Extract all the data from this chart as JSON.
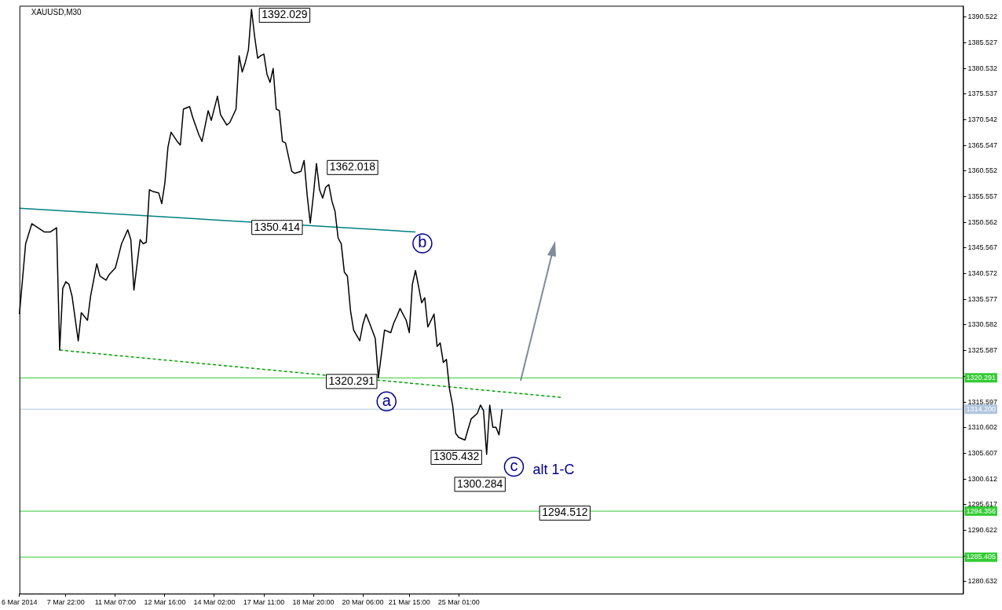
{
  "chart_data": {
    "type": "line",
    "title": "XAUUSD,M30",
    "legend": false,
    "grid": false,
    "marker": "none",
    "categories": [
      "6 Mar 2014",
      null,
      null,
      null,
      null,
      null,
      null,
      null,
      null,
      null,
      null,
      null,
      null,
      null,
      null,
      "7 Mar 22:00",
      null,
      null,
      null,
      null,
      null,
      null,
      null,
      null,
      null,
      null,
      null,
      null,
      null,
      null,
      null,
      "11 Mar 07:00",
      null,
      null,
      null,
      null,
      null,
      null,
      null,
      null,
      null,
      null,
      null,
      null,
      null,
      null,
      null,
      "12 Mar 16:00",
      null,
      null,
      null,
      null,
      null,
      null,
      null,
      null,
      null,
      null,
      null,
      null,
      null,
      null,
      null,
      "14 Mar 02:00",
      null,
      null,
      null,
      null,
      null,
      null,
      null,
      null,
      null,
      null,
      null,
      null,
      null,
      null,
      null,
      "17 Mar 11:00",
      null,
      null,
      null,
      null,
      null,
      null,
      null,
      null,
      null,
      null,
      null,
      null,
      null,
      null,
      null,
      "18 Mar 20:00",
      null,
      null,
      null,
      null,
      null,
      null,
      null,
      null,
      null,
      null,
      null,
      null,
      null,
      null,
      null,
      "20 Mar 06:00",
      null,
      null,
      null,
      null,
      null,
      null,
      null,
      null,
      null,
      null,
      null,
      null,
      null,
      null,
      "21 Mar 15:00",
      null,
      null,
      null,
      null,
      null,
      null,
      null,
      null,
      null,
      null,
      null,
      null,
      null,
      null,
      null,
      "25 Mar 01:00",
      null,
      null,
      null,
      null,
      null,
      null,
      null,
      null,
      null,
      null,
      null,
      null,
      null,
      null,
      null,
      null,
      null,
      null,
      null,
      null,
      null,
      null,
      null,
      null,
      null,
      null,
      null,
      null,
      null,
      null,
      null,
      null,
      null,
      null,
      null,
      null,
      null,
      null,
      null,
      null,
      null,
      null,
      null,
      null,
      null,
      null,
      null,
      null,
      null,
      null,
      null,
      null,
      null,
      null,
      null,
      null,
      null,
      null,
      null,
      null,
      null,
      null,
      null,
      null,
      null,
      null,
      null,
      null,
      null,
      null,
      null,
      null,
      null,
      null,
      null,
      null,
      null,
      null,
      null,
      null,
      null,
      null,
      null,
      null,
      null,
      null,
      null,
      null,
      null,
      null,
      null,
      null,
      null,
      null,
      null,
      null,
      null,
      null,
      null,
      null,
      null,
      null,
      null,
      null,
      null,
      null,
      null,
      null,
      null,
      null,
      null,
      null,
      null,
      null,
      null,
      null,
      null,
      null,
      null,
      null,
      null,
      null,
      null,
      null,
      null,
      null,
      null,
      null,
      null,
      null,
      null,
      null,
      null,
      null,
      null,
      null,
      null,
      null,
      null,
      null,
      null,
      null,
      null,
      null,
      null,
      null,
      null,
      null,
      null,
      null,
      null,
      null,
      null,
      null,
      null,
      null,
      null,
      null,
      null,
      null,
      null,
      null,
      null
    ],
    "ylim": [
      1278.3,
      1392.7
    ],
    "yticks": [
      1280.632,
      {
        "value": 1285.627,
        "label": null
      },
      1290.622,
      1295.617,
      1300.612,
      1305.607,
      1310.602,
      1315.597,
      {
        "value": 1320.592,
        "label": null
      },
      1325.587,
      1330.582,
      1335.577,
      1340.572,
      1345.567,
      1350.562,
      1355.557,
      1360.552,
      1365.547,
      1370.542,
      1375.537,
      1380.532,
      1385.527,
      1390.522
    ],
    "series": [
      {
        "color": "#000000",
        "values": [
          1332.7,
          null,
          1346.4,
          null,
          1350.3,
          null,
          1349.5,
          null,
          1348.7,
          null,
          1348.7,
          null,
          1349.5,
          1325.7,
          1337.7,
          1339.0,
          1338.5,
          1336.2,
          null,
          1327.5,
          1333.0,
          null,
          1331.5,
          1336.2,
          null,
          1342.5,
          1340.1,
          null,
          1339.3,
          1340.4,
          null,
          1341.7,
          1344.0,
          1346.4,
          null,
          1349.1,
          1347.2,
          1337.4,
          null,
          1347.2,
          1346.4,
          1346.7,
          1356.9,
          1356.6,
          null,
          1356.3,
          1354.2,
          1358.2,
          1365.2,
          1368.1,
          null,
          1366.3,
          1365.6,
          1372.6,
          null,
          1373.1,
          1371.0,
          null,
          1367.6,
          1366.3,
          null,
          1372.3,
          1370.4,
          null,
          1375.1,
          1371.5,
          null,
          1369.5,
          1370.0,
          null,
          1372.6,
          1383.0,
          1379.8,
          1381.7,
          1384.1,
          1392.0,
          1386.8,
          1382.5,
          1383.0,
          1383.3,
          1379.4,
          1377.8,
          1380.5,
          1372.6,
          1372.3,
          1366.3,
          1366.0,
          null,
          1360.5,
          1360.1,
          null,
          1360.5,
          1362.6,
          1355.8,
          1350.4,
          1355.8,
          1362.0,
          1356.9,
          1355.3,
          1357.4,
          1357.9,
          1354.7,
          1352.7,
          1347.5,
          1346.4,
          1340.9,
          1340.1,
          1333.4,
          1329.6,
          null,
          1327.5,
          1330.7,
          1332.7,
          1331.2,
          null,
          1328.0,
          1320.3,
          1324.9,
          1329.6,
          null,
          1329.1,
          1331.0,
          1332.3,
          1333.8,
          null,
          1331.5,
          1329.1,
          1338.5,
          1341.2,
          1338.1,
          1334.9,
          1335.9,
          1330.2,
          null,
          1332.7,
          1326.4,
          1327.1,
          1323.3,
          1323.9,
          1318.1,
          1315.0,
          1309.5,
          1308.7,
          null,
          1308.2,
          1310.3,
          1312.3,
          null,
          1313.4,
          1315.0,
          1313.9,
          1305.4,
          1315.0,
          1310.7,
          1310.7,
          1309.2,
          1314.2,
          null,
          null,
          null,
          null,
          null,
          null,
          null,
          null,
          null,
          null,
          null,
          null,
          null,
          null,
          null,
          null,
          null,
          null,
          null,
          null,
          null,
          null,
          null,
          null,
          null,
          null,
          null,
          null,
          null,
          null,
          null,
          null,
          null,
          null,
          null,
          null,
          null,
          null,
          null,
          null,
          null,
          null,
          null,
          null,
          null,
          null,
          null,
          null,
          null,
          null,
          null,
          null,
          null,
          null,
          null,
          null,
          null,
          null,
          null,
          null,
          null,
          null,
          null,
          null,
          null,
          null,
          null,
          null,
          null,
          null,
          null,
          null,
          null,
          null,
          null,
          null,
          null,
          null,
          null,
          null,
          null,
          null,
          null,
          null,
          null,
          null,
          null,
          null,
          null,
          null,
          null,
          null,
          null,
          null,
          null,
          null,
          null,
          null,
          null,
          null,
          null,
          null,
          null,
          null,
          null,
          null,
          null,
          null,
          null,
          null,
          null,
          null,
          null,
          null,
          null,
          null,
          null,
          null,
          null,
          null,
          null,
          null,
          null,
          null,
          null,
          null,
          null,
          null,
          null,
          null,
          null,
          null,
          null,
          null,
          null,
          null,
          null,
          null,
          null,
          null,
          null,
          null,
          null,
          null,
          null,
          null,
          null,
          null,
          null
        ]
      },
      {
        "color": "#008080",
        "values": [
          1353.3,
          null,
          null,
          null,
          null,
          null,
          null,
          null,
          null,
          null,
          null,
          null,
          null,
          null,
          null,
          null,
          null,
          null,
          null,
          null,
          null,
          null,
          null,
          null,
          null,
          null,
          null,
          null,
          null,
          null,
          null,
          null,
          null,
          null,
          null,
          null,
          null,
          null,
          null,
          null,
          null,
          null,
          null,
          null,
          null,
          null,
          null,
          null,
          null,
          null,
          null,
          null,
          null,
          null,
          null,
          null,
          null,
          null,
          null,
          null,
          null,
          null,
          null,
          null,
          null,
          null,
          null,
          null,
          null,
          null,
          null,
          null,
          null,
          null,
          null,
          null,
          null,
          null,
          null,
          null,
          null,
          null,
          null,
          null,
          null,
          null,
          null,
          null,
          null,
          null,
          null,
          null,
          null,
          null,
          null,
          null,
          null,
          null,
          null,
          null,
          null,
          null,
          null,
          null,
          null,
          null,
          null,
          null,
          null,
          null,
          null,
          null,
          null,
          null,
          null,
          null,
          null,
          null,
          null,
          null,
          null,
          null,
          null,
          null,
          null,
          null,
          null,
          null,
          1348.7,
          null,
          null,
          null,
          null,
          null,
          null,
          null,
          null,
          null,
          null,
          null,
          null,
          null,
          null,
          null,
          null,
          null,
          null,
          null,
          null,
          null,
          null,
          null,
          null,
          null,
          null,
          null,
          null,
          null,
          null,
          null,
          null,
          null,
          null,
          null,
          null,
          null,
          null,
          null,
          null,
          null,
          null,
          null,
          null,
          null,
          null,
          null,
          null,
          null,
          null,
          null,
          null,
          null,
          null,
          null,
          null,
          null,
          null,
          null,
          null,
          null,
          null,
          null,
          null,
          null,
          null,
          null,
          null,
          null,
          null,
          null,
          null,
          null,
          null,
          null,
          null,
          null,
          null,
          null,
          null,
          null,
          null,
          null,
          null,
          null,
          null,
          null,
          null,
          null,
          null,
          null,
          null,
          null,
          null,
          null,
          null,
          null,
          null,
          null,
          null,
          null,
          null,
          null,
          null,
          null,
          null,
          null,
          null,
          null,
          null,
          null,
          null,
          null,
          null,
          null,
          null,
          null,
          null,
          null,
          null,
          null,
          null,
          null,
          null,
          null,
          null,
          null,
          null,
          null,
          null,
          null,
          null,
          null,
          null,
          null,
          null,
          null,
          null,
          null,
          null,
          null,
          null,
          null,
          null,
          null,
          null,
          null,
          null,
          null,
          null,
          null,
          null,
          null,
          null,
          null,
          null,
          null,
          null,
          null,
          null,
          null,
          null,
          null,
          null,
          null,
          null,
          null,
          null,
          null,
          null,
          null,
          null,
          null,
          null,
          null,
          null,
          null
        ]
      },
      {
        "color": "#00a000",
        "line_style": "dashed",
        "values": [
          null,
          null,
          null,
          null,
          null,
          null,
          null,
          null,
          null,
          null,
          null,
          null,
          null,
          1325.7,
          null,
          null,
          null,
          null,
          null,
          null,
          null,
          null,
          null,
          null,
          null,
          null,
          null,
          null,
          null,
          null,
          null,
          null,
          null,
          null,
          null,
          null,
          null,
          null,
          null,
          null,
          null,
          null,
          null,
          null,
          null,
          null,
          null,
          null,
          null,
          null,
          null,
          null,
          null,
          null,
          null,
          null,
          null,
          null,
          null,
          null,
          null,
          null,
          null,
          null,
          null,
          null,
          null,
          null,
          null,
          null,
          null,
          null,
          null,
          null,
          null,
          null,
          null,
          null,
          null,
          null,
          null,
          null,
          null,
          null,
          null,
          null,
          null,
          null,
          null,
          null,
          null,
          null,
          null,
          null,
          null,
          null,
          null,
          null,
          null,
          null,
          null,
          null,
          null,
          null,
          null,
          null,
          null,
          null,
          null,
          null,
          null,
          null,
          null,
          null,
          null,
          null,
          null,
          null,
          null,
          null,
          null,
          null,
          null,
          null,
          null,
          null,
          null,
          null,
          null,
          null,
          null,
          null,
          null,
          null,
          null,
          null,
          null,
          null,
          null,
          null,
          null,
          null,
          null,
          null,
          null,
          null,
          null,
          null,
          null,
          null,
          null,
          null,
          null,
          null,
          null,
          null,
          null,
          null,
          null,
          null,
          null,
          null,
          null,
          null,
          null,
          null,
          null,
          null,
          null,
          null,
          null,
          null,
          null,
          null,
          null,
          1316.5,
          null,
          null,
          null,
          null,
          null,
          null,
          null,
          null,
          null,
          null,
          null,
          null,
          null,
          null,
          null,
          null,
          null,
          null,
          null,
          null,
          null,
          null,
          null,
          null,
          null,
          null,
          null,
          null,
          null,
          null,
          null,
          null,
          null,
          null,
          null,
          null,
          null,
          null,
          null,
          null,
          null,
          null,
          null,
          null,
          null,
          null,
          null,
          null,
          null,
          null,
          null,
          null,
          null,
          null,
          null,
          null,
          null,
          null,
          null,
          null,
          null,
          null,
          null,
          null,
          null,
          null,
          null,
          null,
          null,
          null,
          null,
          null,
          null,
          null,
          null,
          null,
          null,
          null,
          null,
          null,
          null,
          null,
          null,
          null,
          null,
          null,
          null,
          null,
          null,
          null,
          null,
          null,
          null,
          null,
          null,
          null,
          null,
          null,
          null,
          null,
          null,
          null,
          null,
          null,
          null,
          null,
          null,
          null,
          null,
          null,
          null,
          null,
          null,
          null,
          null,
          null,
          null,
          null,
          null,
          null,
          null,
          null,
          null,
          null,
          null,
          null,
          null,
          null,
          null,
          null
        ]
      }
    ],
    "ref_lines": [
      {
        "axis": "y",
        "value": 1320.291,
        "label": "1320.291",
        "color": "#33cc33"
      },
      {
        "axis": "y",
        "value": 1314.2,
        "label": "1314.200",
        "color": "#b0c4de"
      },
      {
        "axis": "y",
        "value": 1294.356,
        "label": "1294.356",
        "color": "#33cc33"
      },
      {
        "axis": "y",
        "value": 1285.405,
        "label": "1285.405",
        "color": "#33cc33"
      }
    ],
    "annotations": [
      "1392.029",
      "1362.018",
      "1350.414",
      "1320.291",
      "1305.432",
      "1300.284",
      "1294.512",
      "a",
      "b",
      "c",
      "alt 1-C"
    ]
  }
}
